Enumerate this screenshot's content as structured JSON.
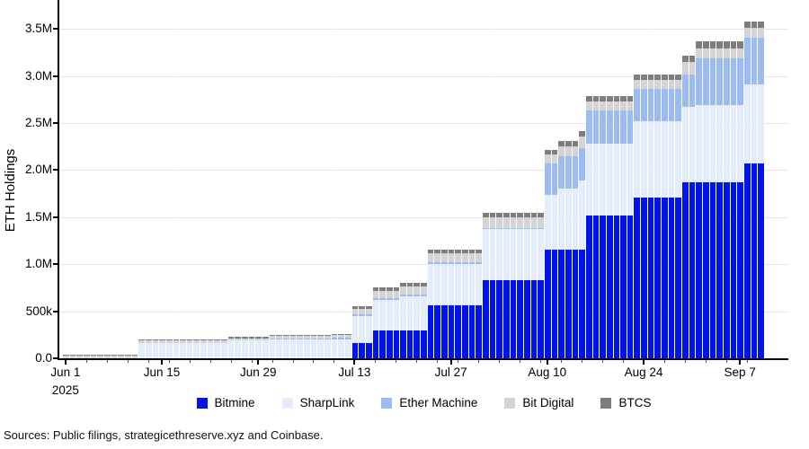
{
  "footer": {
    "source": "Sources: Public filings, strategicethreserve.xyz and Coinbase."
  },
  "chart_data": {
    "type": "bar",
    "subtype": "stacked-daily-bars",
    "title": "",
    "xlabel": "",
    "ylabel": "ETH Holdings",
    "ylim": [
      0,
      3800000
    ],
    "grid": true,
    "legend_position": "bottom",
    "background": "#ffffff",
    "gridline_color": "#e4e4e4",
    "axis_color": "#000000",
    "x_start_date": "Jun 1",
    "x_end_date": "Sep 10",
    "x_year_sublabel": "2025",
    "yticks": [
      {
        "value": 0,
        "label": "0.0"
      },
      {
        "value": 500000,
        "label": "500k"
      },
      {
        "value": 1000000,
        "label": "1.0M"
      },
      {
        "value": 1500000,
        "label": "1.5M"
      },
      {
        "value": 2000000,
        "label": "2.0M"
      },
      {
        "value": 2500000,
        "label": "2.5M"
      },
      {
        "value": 3000000,
        "label": "3.0M"
      },
      {
        "value": 3500000,
        "label": "3.5M"
      }
    ],
    "xticks": [
      {
        "day": 0,
        "label": "Jun 1",
        "sublabel": "2025"
      },
      {
        "day": 14,
        "label": "Jun 15"
      },
      {
        "day": 28,
        "label": "Jun 29"
      },
      {
        "day": 42,
        "label": "Jul 13"
      },
      {
        "day": 56,
        "label": "Jul 27"
      },
      {
        "day": 70,
        "label": "Aug 10"
      },
      {
        "day": 84,
        "label": "Aug 24"
      },
      {
        "day": 98,
        "label": "Sep 7"
      }
    ],
    "series": [
      {
        "name": "Bitmine",
        "color": "#0213ec"
      },
      {
        "name": "SharpLink",
        "color": "#e4edfb"
      },
      {
        "name": "Ether Machine",
        "color": "#9cbbf2"
      },
      {
        "name": "Bit Digital",
        "color": "#d4d4d4"
      },
      {
        "name": "BTCS",
        "color": "#7d7d7d"
      }
    ],
    "values_unit": "ETH",
    "bar_steps_note": "values are [Bitmine, SharpLink, Ether Machine, Bit Digital, BTCS] in ETH; each step repeats for 'days' consecutive daily bars",
    "bar_steps": [
      {
        "start": "Jun 1",
        "days": 11,
        "values": [
          0,
          0,
          0,
          25000,
          13000
        ]
      },
      {
        "start": "Jun 12",
        "days": 13,
        "values": [
          0,
          165000,
          0,
          25000,
          13000
        ]
      },
      {
        "start": "Jun 25",
        "days": 6,
        "values": [
          0,
          188000,
          0,
          25000,
          13000
        ]
      },
      {
        "start": "Jul 1",
        "days": 9,
        "values": [
          0,
          198000,
          12000,
          26000,
          14000
        ]
      },
      {
        "start": "Jul 10",
        "days": 3,
        "values": [
          0,
          205000,
          12000,
          28000,
          15000
        ]
      },
      {
        "start": "Jul 13",
        "days": 3,
        "values": [
          163000,
          290000,
          15000,
          60000,
          30000
        ]
      },
      {
        "start": "Jul 16",
        "days": 4,
        "values": [
          300000,
          321000,
          15000,
          80000,
          35000
        ]
      },
      {
        "start": "Jul 20",
        "days": 4,
        "values": [
          300000,
          360000,
          15000,
          90000,
          40000
        ]
      },
      {
        "start": "Jul 24",
        "days": 8,
        "values": [
          566000,
          438000,
          15000,
          100000,
          40000
        ]
      },
      {
        "start": "Aug 1",
        "days": 9,
        "values": [
          833000,
          540000,
          15000,
          110000,
          45000
        ]
      },
      {
        "start": "Aug 10",
        "days": 2,
        "values": [
          1150000,
          590000,
          330000,
          100000,
          45000
        ]
      },
      {
        "start": "Aug 12",
        "days": 3,
        "values": [
          1150000,
          650000,
          345000,
          110000,
          50000
        ]
      },
      {
        "start": "Aug 15",
        "days": 1,
        "values": [
          1150000,
          740000,
          345000,
          120000,
          55000
        ]
      },
      {
        "start": "Aug 16",
        "days": 7,
        "values": [
          1520000,
          760000,
          350000,
          95000,
          60000
        ]
      },
      {
        "start": "Aug 23",
        "days": 7,
        "values": [
          1710000,
          810000,
          345000,
          90000,
          65000
        ]
      },
      {
        "start": "Aug 30",
        "days": 2,
        "values": [
          1870000,
          800000,
          345000,
          135000,
          70000
        ]
      },
      {
        "start": "Sep 1",
        "days": 7,
        "values": [
          1870000,
          820000,
          495000,
          110000,
          70000
        ]
      },
      {
        "start": "Sep 8",
        "days": 3,
        "values": [
          2070000,
          840000,
          500000,
          105000,
          65000
        ]
      }
    ]
  }
}
